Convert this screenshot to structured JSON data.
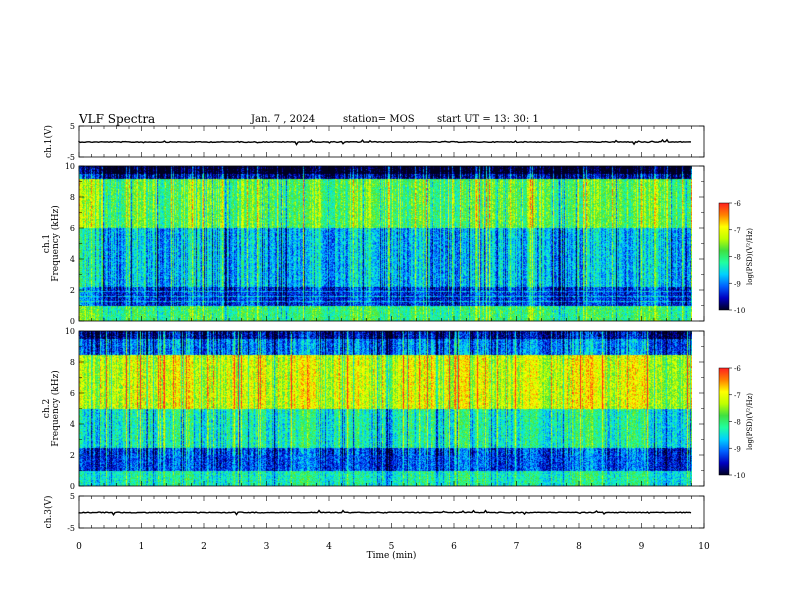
{
  "header": {
    "title": "VLF Spectra",
    "date": "Jan. 7 , 2024",
    "station": "station= MOS",
    "start": "start  UT =   13: 30: 1"
  },
  "chart_data": [
    {
      "type": "line",
      "name": "ch1-waveform",
      "ylabel": "ch.1(V)",
      "ylim": [
        -5,
        5
      ],
      "yticks": [
        "5",
        "-5"
      ],
      "xlim": [
        0,
        10
      ],
      "series": [
        {
          "x": [
            0,
            9.8
          ],
          "y": [
            0,
            0
          ]
        }
      ]
    },
    {
      "type": "heatmap",
      "name": "ch1-spectrogram",
      "ylabel": "ch.1\nFrequency (kHz)",
      "ylabel_line1": "ch.1",
      "ylabel_line2": "Frequency (kHz)",
      "ylim": [
        0,
        10
      ],
      "yticks": [
        "0",
        "2",
        "4",
        "6",
        "8",
        "10"
      ],
      "xlim": [
        0,
        9.8
      ],
      "data_description_bands_kHz": [
        {
          "f": [
            0,
            1.0
          ],
          "level": -8
        },
        {
          "f": [
            1.0,
            2.2
          ],
          "level": -9.3
        },
        {
          "f": [
            2.2,
            6.0
          ],
          "level": -8.7
        },
        {
          "f": [
            6.0,
            9.2
          ],
          "level": -7.8
        },
        {
          "f": [
            9.2,
            10
          ],
          "level": -9.6
        }
      ],
      "colorbar": {
        "label": "log(PSD)(V²/Hz)",
        "range": [
          -10,
          -6
        ],
        "ticks": [
          "-6",
          "-7",
          "-8",
          "-9",
          "-10"
        ]
      }
    },
    {
      "type": "heatmap",
      "name": "ch2-spectrogram",
      "ylabel": "ch.2\nFrequency (kHz)",
      "ylabel_line1": "ch.2",
      "ylabel_line2": "Frequency (kHz)",
      "ylim": [
        0,
        10
      ],
      "yticks": [
        "0",
        "2",
        "4",
        "6",
        "8",
        "10"
      ],
      "xlim": [
        0,
        9.8
      ],
      "data_description_bands_kHz": [
        {
          "f": [
            0,
            1.0
          ],
          "level": -8.3
        },
        {
          "f": [
            1.0,
            2.5
          ],
          "level": -9.2
        },
        {
          "f": [
            2.5,
            5.0
          ],
          "level": -8.3
        },
        {
          "f": [
            5.0,
            8.5
          ],
          "level": -7.2
        },
        {
          "f": [
            8.5,
            10
          ],
          "level": -9.0
        }
      ],
      "colorbar": {
        "label": "log(PSD)(V²/Hz)",
        "range": [
          -10,
          -6
        ],
        "ticks": [
          "-6",
          "-7",
          "-8",
          "-9",
          "-10"
        ]
      }
    },
    {
      "type": "line",
      "name": "ch3-waveform",
      "ylabel": "ch.3(V)",
      "ylim": [
        -5,
        5
      ],
      "yticks": [
        "5",
        "-5"
      ],
      "xlim": [
        0,
        10
      ],
      "xlabel": "Time (min)",
      "xticks": [
        "0",
        "1",
        "2",
        "3",
        "4",
        "5",
        "6",
        "7",
        "8",
        "9",
        "10"
      ],
      "series": [
        {
          "x": [
            0,
            9.8
          ],
          "y": [
            0,
            0
          ]
        }
      ]
    }
  ],
  "colors": {
    "colormap": [
      "#000020",
      "#0000c0",
      "#0060ff",
      "#00d0ff",
      "#20ffa0",
      "#40e040",
      "#c0ff00",
      "#ffff00",
      "#ff8000",
      "#ff2020",
      "#ffffff"
    ]
  }
}
